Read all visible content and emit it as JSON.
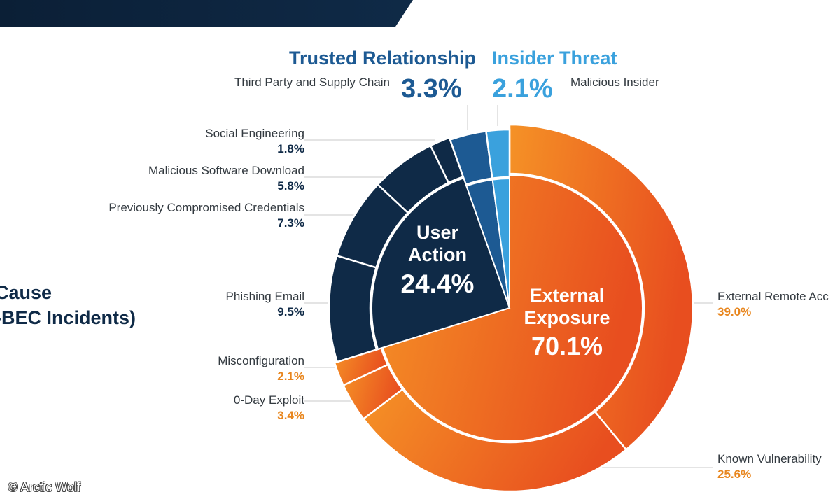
{
  "chart_data": {
    "type": "pie",
    "title": "Root Cause (Non-BEC Incidents)",
    "title_lines": [
      "Root Cause",
      "(Non-BEC Incidents)"
    ],
    "categories": [
      {
        "name": "External Exposure",
        "lines": [
          "External",
          "Exposure"
        ],
        "value": 70.1,
        "label": "70.1%",
        "color": "#f07020",
        "subcategories": [
          {
            "name": "External Remote Access",
            "value": 39.0,
            "label": "39.0%"
          },
          {
            "name": "Known Vulnerability",
            "value": 25.6,
            "label": "25.6%"
          },
          {
            "name": "0-Day Exploit",
            "value": 3.4,
            "label": "3.4%"
          },
          {
            "name": "Misconfiguration",
            "value": 2.1,
            "label": "2.1%"
          }
        ]
      },
      {
        "name": "User Action",
        "lines": [
          "User",
          "Action"
        ],
        "value": 24.4,
        "label": "24.4%",
        "color": "#0f2a47",
        "subcategories": [
          {
            "name": "Phishing Email",
            "value": 9.5,
            "label": "9.5%"
          },
          {
            "name": "Previously Compromised Credentials",
            "value": 7.3,
            "label": "7.3%"
          },
          {
            "name": "Malicious Software Download",
            "value": 5.8,
            "label": "5.8%"
          },
          {
            "name": "Social Engineering",
            "value": 1.8,
            "label": "1.8%"
          }
        ]
      },
      {
        "name": "Trusted Relationship",
        "value": 3.3,
        "label": "3.3%",
        "color": "#1d5a93",
        "subcategories": [
          {
            "name": "Third Party and Supply Chain",
            "value": 3.3,
            "label": "3.3%"
          }
        ]
      },
      {
        "name": "Insider Threat",
        "value": 2.1,
        "label": "2.1%",
        "color": "#3aa1dd",
        "subcategories": [
          {
            "name": "Malicious Insider",
            "value": 2.1,
            "label": "2.1%"
          }
        ]
      }
    ]
  },
  "labels": {
    "trusted_header": "Trusted Relationship",
    "insider_header": "Insider Threat",
    "trusted_pct": "3.3%",
    "insider_pct": "2.1%",
    "trusted_sub": "Third Party and Supply Chain",
    "insider_sub": "Malicious Insider",
    "social": {
      "name": "Social Engineering",
      "value": "1.8%"
    },
    "malsoft": {
      "name": "Malicious Software Download",
      "value": "5.8%"
    },
    "prevcred": {
      "name": "Previously Compromised Credentials",
      "value": "7.3%"
    },
    "phishing": {
      "name": "Phishing Email",
      "value": "9.5%"
    },
    "misconfig": {
      "name": "Misconfiguration",
      "value": "2.1%"
    },
    "zeroday": {
      "name": "0-Day Exploit",
      "value": "3.4%"
    },
    "extremote": {
      "name": "External Remote Acc",
      "value": "39.0%"
    },
    "knownvuln": {
      "name": "Known Vulnerability",
      "value": "25.6%"
    }
  },
  "title_visible": [
    "ot Cause",
    "on-BEC Incidents)"
  ],
  "copyright": "© Arctic Wolf",
  "colors": {
    "navy": "#0f2a47",
    "blue": "#1d5a93",
    "light_blue": "#3aa1dd",
    "orange_light": "#f59226",
    "orange_dark": "#e84e1f",
    "orange_text": "#e8861e"
  }
}
